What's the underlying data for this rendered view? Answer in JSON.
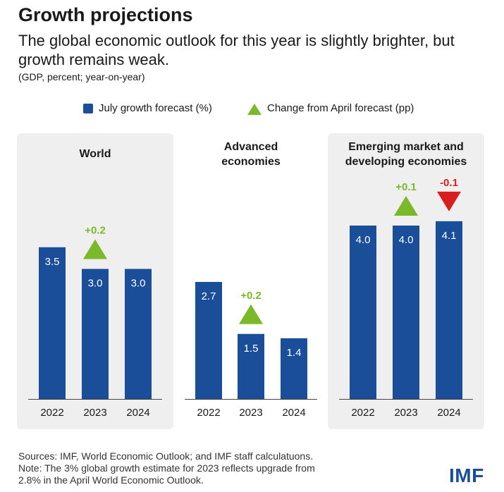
{
  "title": "Growth projections",
  "subtitle": "The global economic outlook for this year is slightly brighter, but growth remains weak.",
  "units": "(GDP, percent; year-on-year)",
  "legend": {
    "bar_label": "July growth forecast (%)",
    "triangle_label": "Change from April forecast (pp)"
  },
  "colors": {
    "bar": "#1a4e99",
    "up": "#7ab929",
    "down": "#d81e1e",
    "panel": "#efefef"
  },
  "chart_data": [
    {
      "type": "bar",
      "title": "World",
      "categories": [
        "2022",
        "2023",
        "2024"
      ],
      "series": [
        {
          "name": "July growth forecast (%)",
          "values": [
            3.5,
            3.0,
            3.0
          ],
          "labels": [
            "3.5",
            "3.0",
            "3.0"
          ]
        },
        {
          "name": "Change from April forecast (pp)",
          "values": [
            null,
            0.2,
            null
          ],
          "labels": [
            null,
            "+0.2",
            null
          ]
        }
      ],
      "shaded": true
    },
    {
      "type": "bar",
      "title": "Advanced\neconomies",
      "categories": [
        "2022",
        "2023",
        "2024"
      ],
      "series": [
        {
          "name": "July growth forecast (%)",
          "values": [
            2.7,
            1.5,
            1.4
          ],
          "labels": [
            "2.7",
            "1.5",
            "1.4"
          ]
        },
        {
          "name": "Change from April forecast (pp)",
          "values": [
            null,
            0.2,
            null
          ],
          "labels": [
            null,
            "+0.2",
            null
          ]
        }
      ],
      "shaded": false
    },
    {
      "type": "bar",
      "title": "Emerging market and\ndeveloping economies",
      "categories": [
        "2022",
        "2023",
        "2024"
      ],
      "series": [
        {
          "name": "July growth forecast (%)",
          "values": [
            4.0,
            4.0,
            4.1
          ],
          "labels": [
            "4.0",
            "4.0",
            "4.1"
          ]
        },
        {
          "name": "Change from April forecast (pp)",
          "values": [
            null,
            0.1,
            -0.1
          ],
          "labels": [
            null,
            "+0.1",
            "-0.1"
          ]
        }
      ],
      "shaded": true
    }
  ],
  "footer": {
    "line1": "Sources: IMF, World Economic Outlook; and IMF staff calculatuons.",
    "line2": "Note: The 3% global growth estimate for 2023 reflects upgrade from",
    "line3": "2.8% in the April World Economic Outlook."
  },
  "logo": "IMF"
}
